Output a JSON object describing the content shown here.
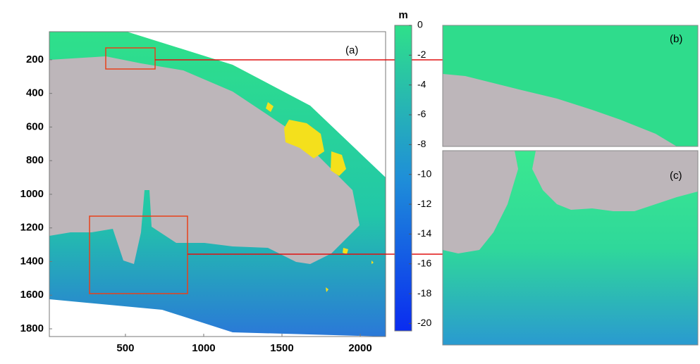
{
  "chart_data": {
    "type": "heatmap",
    "xlim": [
      14,
      2162
    ],
    "xticks": [
      500,
      1000,
      1500,
      2000
    ],
    "ylim": [
      33,
      1846
    ],
    "yticks": [
      200,
      400,
      600,
      800,
      1000,
      1200,
      1400,
      1600,
      1800
    ],
    "colorbar": {
      "label": "m",
      "clim": [
        -20.5,
        0
      ],
      "ticks": [
        0,
        -2,
        -4,
        -6,
        -8,
        -10,
        -12,
        -14,
        -16,
        -18,
        -20
      ],
      "colors": [
        "#0a2cf0",
        "#1f8fd8",
        "#2fe08a"
      ]
    },
    "land_color": "#bdb6ba",
    "highlight_color": "#f4e01c",
    "box_color": "#e8401a",
    "line_color": "#e01010",
    "panels": [
      "(a)",
      "(b)",
      "(c)"
    ]
  }
}
